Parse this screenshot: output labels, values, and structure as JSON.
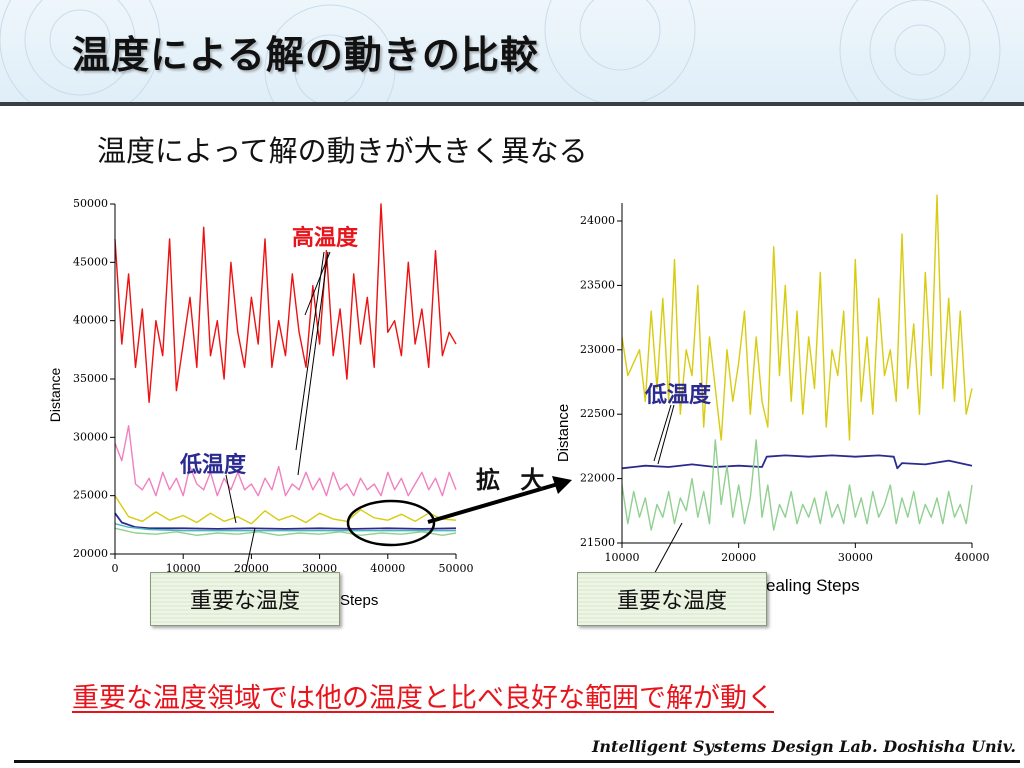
{
  "slide": {
    "title": "温度による解の動きの比較",
    "subtitle": "温度によって解の動きが大きく異なる",
    "zoom_label": "拡 大",
    "conclusion": "重要な温度領域では他の温度と比べ良好な範囲で解が動く",
    "footer": "Intelligent Systems Design Lab. Doshisha Univ."
  },
  "annotations": {
    "high_temp": "高温度",
    "low_temp": "低温度",
    "important_temp": "重要な温度"
  },
  "colors": {
    "high": "#ee1111",
    "pink": "#f080c0",
    "yellow": "#d8cc10",
    "low": "#2b2b8f",
    "green": "#90d090",
    "teal": "#48b8b8",
    "conclusion": "#e8141b",
    "annot_red": "#e8141b",
    "annot_blue": "#2a2a90"
  },
  "chart_data": [
    {
      "type": "line",
      "ylabel": "Distance",
      "xlabel": "Steps",
      "xlim": [
        0,
        50000
      ],
      "ylim": [
        20000,
        50000
      ],
      "xticks": [
        "0",
        "10000",
        "20000",
        "30000",
        "40000",
        "50000"
      ],
      "yticks": [
        "20000",
        "25000",
        "30000",
        "35000",
        "40000",
        "45000",
        "50000"
      ],
      "series": [
        {
          "color_key": "high",
          "x": [
            0,
            1000,
            2000,
            3000,
            4000,
            5000,
            6000,
            7000,
            8000,
            9000,
            10000,
            11000,
            12000,
            13000,
            14000,
            15000,
            16000,
            17000,
            18000,
            19000,
            20000,
            21000,
            22000,
            23000,
            24000,
            25000,
            26000,
            27000,
            28000,
            29000,
            30000,
            31000,
            32000,
            33000,
            34000,
            35000,
            36000,
            37000,
            38000,
            39000,
            40000,
            41000,
            42000,
            43000,
            44000,
            45000,
            46000,
            47000,
            48000,
            49000,
            50000
          ],
          "y": [
            47000,
            38000,
            44000,
            36000,
            41000,
            33000,
            40000,
            37000,
            47000,
            34000,
            38000,
            42000,
            36000,
            48000,
            37000,
            40000,
            35000,
            45000,
            39000,
            36000,
            42000,
            38000,
            47000,
            36000,
            40000,
            37000,
            44000,
            39000,
            36000,
            43000,
            38000,
            46000,
            37000,
            41000,
            35000,
            44000,
            38000,
            42000,
            36000,
            50000,
            39000,
            40000,
            37000,
            45000,
            38000,
            41000,
            36000,
            46000,
            37000,
            39000,
            38000
          ]
        },
        {
          "color_key": "pink",
          "x": [
            0,
            1000,
            2000,
            3000,
            4000,
            5000,
            6000,
            7000,
            8000,
            9000,
            10000,
            11000,
            12000,
            13000,
            14000,
            15000,
            16000,
            17000,
            18000,
            19000,
            20000,
            21000,
            22000,
            23000,
            24000,
            25000,
            26000,
            27000,
            28000,
            29000,
            30000,
            31000,
            32000,
            33000,
            34000,
            35000,
            36000,
            37000,
            38000,
            39000,
            40000,
            41000,
            42000,
            43000,
            44000,
            45000,
            46000,
            47000,
            48000,
            49000,
            50000
          ],
          "y": [
            29500,
            28000,
            31000,
            26000,
            25500,
            26500,
            25000,
            27000,
            25500,
            26500,
            25000,
            27500,
            26000,
            25500,
            27000,
            25000,
            26500,
            25500,
            27000,
            25500,
            26000,
            25000,
            26500,
            25500,
            27500,
            25000,
            26000,
            25500,
            27000,
            25500,
            26500,
            25000,
            27000,
            25500,
            26000,
            25000,
            26500,
            25500,
            26000,
            25000,
            27000,
            25500,
            26500,
            25000,
            26000,
            27000,
            25500,
            26500,
            25000,
            27000,
            25500
          ]
        },
        {
          "color_key": "yellow",
          "x": [
            0,
            2000,
            4000,
            6000,
            8000,
            10000,
            12000,
            14000,
            16000,
            18000,
            20000,
            22000,
            24000,
            26000,
            28000,
            30000,
            32000,
            34000,
            36000,
            38000,
            40000,
            42000,
            44000,
            46000,
            48000,
            50000
          ],
          "y": [
            25000,
            23200,
            22800,
            23600,
            22900,
            23300,
            22700,
            23500,
            22800,
            23200,
            22600,
            23700,
            22900,
            23300,
            22700,
            23500,
            23000,
            22800,
            23800,
            23100,
            22900,
            23400,
            22800,
            23500,
            23000,
            22900
          ]
        },
        {
          "color_key": "low",
          "x": [
            0,
            1000,
            2000,
            3000,
            5000,
            10000,
            15000,
            20000,
            25000,
            30000,
            35000,
            40000,
            45000,
            50000
          ],
          "y": [
            23500,
            22700,
            22500,
            22300,
            22200,
            22200,
            22150,
            22200,
            22150,
            22200,
            22150,
            22200,
            22150,
            22200
          ]
        },
        {
          "color_key": "teal",
          "x": [
            0,
            2000,
            5000,
            10000,
            20000,
            30000,
            40000,
            50000
          ],
          "y": [
            22600,
            22300,
            22100,
            22000,
            22000,
            22000,
            22000,
            22000
          ]
        },
        {
          "color_key": "green",
          "x": [
            0,
            3000,
            6000,
            9000,
            12000,
            15000,
            18000,
            21000,
            24000,
            27000,
            30000,
            33000,
            36000,
            39000,
            42000,
            45000,
            48000,
            50000
          ],
          "y": [
            22200,
            21800,
            21700,
            21900,
            21600,
            21800,
            21700,
            21900,
            21600,
            21800,
            21700,
            21900,
            21600,
            21800,
            21700,
            21900,
            21600,
            21800
          ]
        }
      ]
    },
    {
      "type": "line",
      "ylabel": "Distance",
      "xlabel": "ealing Steps",
      "xlim": [
        10000,
        40000
      ],
      "ylim": [
        21500,
        24000
      ],
      "xticks": [
        "10000",
        "20000",
        "30000",
        "40000"
      ],
      "yticks": [
        "21500",
        "22000",
        "22500",
        "23000",
        "23500",
        "24000"
      ],
      "series": [
        {
          "color_key": "yellow",
          "x": [
            10000,
            10500,
            11000,
            11500,
            12000,
            12500,
            13000,
            13500,
            14000,
            14500,
            15000,
            15500,
            16000,
            16500,
            17000,
            17500,
            18000,
            18500,
            19000,
            19500,
            20000,
            20500,
            21000,
            21500,
            22000,
            22500,
            23000,
            23500,
            24000,
            24500,
            25000,
            25500,
            26000,
            26500,
            27000,
            27500,
            28000,
            28500,
            29000,
            29500,
            30000,
            30500,
            31000,
            31500,
            32000,
            32500,
            33000,
            33500,
            34000,
            34500,
            35000,
            35500,
            36000,
            36500,
            37000,
            37500,
            38000,
            38500,
            39000,
            39500,
            40000
          ],
          "y": [
            23100,
            22800,
            22900,
            23000,
            22600,
            23300,
            22700,
            23400,
            22600,
            23700,
            22500,
            23000,
            22800,
            23500,
            22400,
            23100,
            22700,
            22300,
            23000,
            22600,
            22900,
            23300,
            22500,
            23100,
            22600,
            22400,
            23800,
            22800,
            23500,
            22600,
            23300,
            22500,
            23100,
            22700,
            23600,
            22400,
            23000,
            22800,
            23300,
            22300,
            23700,
            22600,
            23100,
            22500,
            23400,
            22800,
            23000,
            22600,
            23900,
            22700,
            23200,
            22500,
            23600,
            22800,
            24200,
            22700,
            23400,
            22600,
            23300,
            22500,
            22700
          ]
        },
        {
          "color_key": "low",
          "x": [
            10000,
            12000,
            14000,
            16000,
            18000,
            20000,
            22000,
            22400,
            24000,
            26000,
            28000,
            30000,
            32000,
            33300,
            33600,
            34000,
            36000,
            38000,
            40000
          ],
          "y": [
            22080,
            22100,
            22090,
            22110,
            22090,
            22100,
            22090,
            22170,
            22180,
            22170,
            22180,
            22170,
            22180,
            22170,
            22080,
            22120,
            22110,
            22140,
            22100
          ]
        },
        {
          "color_key": "green",
          "x": [
            10000,
            10500,
            11000,
            11500,
            12000,
            12500,
            13000,
            13500,
            14000,
            14500,
            15000,
            15500,
            16000,
            16500,
            17000,
            17500,
            18000,
            18500,
            19000,
            19500,
            20000,
            20500,
            21000,
            21500,
            22000,
            22500,
            23000,
            23500,
            24000,
            24500,
            25000,
            25500,
            26000,
            26500,
            27000,
            27500,
            28000,
            28500,
            29000,
            29500,
            30000,
            30500,
            31000,
            31500,
            32000,
            32500,
            33000,
            33500,
            34000,
            34500,
            35000,
            35500,
            36000,
            36500,
            37000,
            37500,
            38000,
            38500,
            39000,
            39500,
            40000
          ],
          "y": [
            21950,
            21650,
            21900,
            21700,
            21850,
            21600,
            21800,
            21700,
            21900,
            21650,
            21850,
            21750,
            22000,
            21700,
            21900,
            21650,
            22300,
            21800,
            22100,
            21700,
            21950,
            21650,
            21850,
            22300,
            21700,
            21950,
            21600,
            21800,
            21700,
            21900,
            21650,
            21800,
            21700,
            21850,
            21650,
            21900,
            21700,
            21800,
            21650,
            21950,
            21700,
            21850,
            21650,
            21900,
            21700,
            21800,
            21950,
            21650,
            21850,
            21700,
            21900,
            21650,
            21800,
            21700,
            21850,
            21650,
            21900,
            21700,
            21800,
            21650,
            21950
          ]
        }
      ]
    }
  ]
}
